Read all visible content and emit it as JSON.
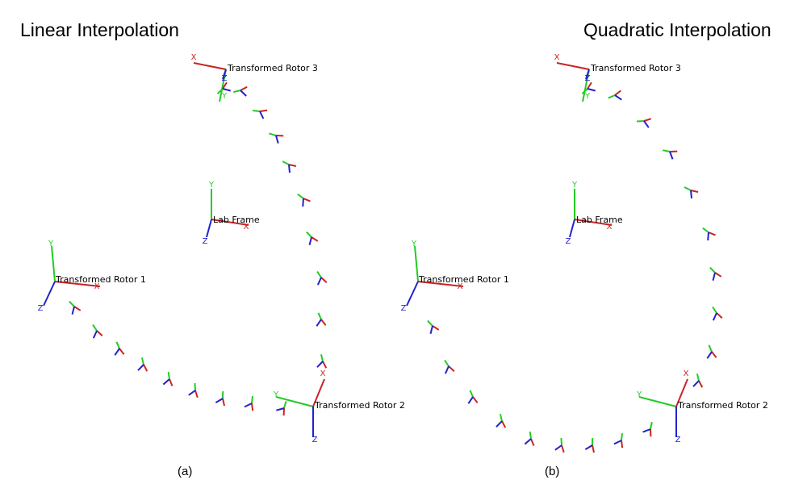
{
  "colors": {
    "x_axis": "#cc2222",
    "y_axis": "#22cc22",
    "z_axis": "#2222cc",
    "text": "#000000"
  },
  "axis_letters": {
    "x": "X",
    "y": "Y",
    "z": "Z"
  },
  "panels": [
    {
      "id": "a",
      "title": "Linear Interpolation",
      "caption": "(a)",
      "frames": [
        {
          "label": "Transformed Rotor 3",
          "key": "rotor3"
        },
        {
          "label": "Lab Frame",
          "key": "lab"
        },
        {
          "label": "Transformed Rotor 1",
          "key": "rotor1"
        },
        {
          "label": "Transformed Rotor 2",
          "key": "rotor2"
        }
      ]
    },
    {
      "id": "b",
      "title": "Quadratic Interpolation",
      "caption": "(b)",
      "frames": [
        {
          "label": "Transformed Rotor 3",
          "key": "rotor3"
        },
        {
          "label": "Lab Frame",
          "key": "lab"
        },
        {
          "label": "Transformed Rotor 1",
          "key": "rotor1"
        },
        {
          "label": "Transformed Rotor 2",
          "key": "rotor2"
        }
      ]
    }
  ]
}
